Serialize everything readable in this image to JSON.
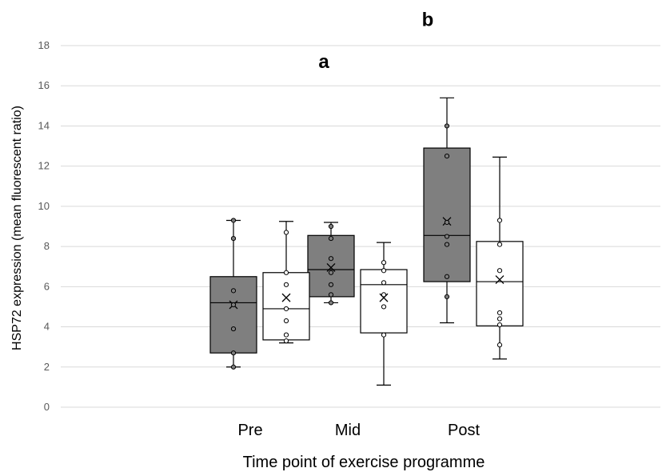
{
  "chart_data": {
    "type": "box",
    "ylabel": "HSP72 expression (mean fluorescent ratio)",
    "xlabel": "Time point of exercise programme",
    "ylim": [
      0,
      18
    ],
    "yticks": [
      0,
      2,
      4,
      6,
      8,
      10,
      12,
      14,
      16,
      18
    ],
    "grid": true,
    "categories": [
      "Pre",
      "Mid",
      "Post"
    ],
    "series": [
      {
        "fill": "#7f7f7f",
        "boxes": [
          {
            "whisker_low": 2.0,
            "q1": 2.7,
            "median": 5.2,
            "q3": 6.5,
            "whisker_high": 9.3,
            "mean": 5.1,
            "points": [
              2.0,
              2.7,
              3.9,
              5.1,
              5.8,
              8.4,
              9.3
            ]
          },
          {
            "whisker_low": 5.2,
            "q1": 5.5,
            "median": 6.85,
            "q3": 8.55,
            "whisker_high": 9.2,
            "mean": 6.95,
            "points": [
              5.2,
              5.6,
              6.1,
              6.7,
              7.4,
              8.4,
              9.0
            ]
          },
          {
            "whisker_low": 4.2,
            "q1": 6.25,
            "median": 8.55,
            "q3": 12.9,
            "whisker_high": 15.4,
            "mean": 9.25,
            "points": [
              5.5,
              6.5,
              8.1,
              8.5,
              9.2,
              12.5,
              14.0
            ]
          }
        ]
      },
      {
        "fill": "#ffffff",
        "boxes": [
          {
            "whisker_low": 3.2,
            "q1": 3.35,
            "median": 4.9,
            "q3": 6.7,
            "whisker_high": 9.25,
            "mean": 5.45,
            "points": [
              3.3,
              3.6,
              4.3,
              4.9,
              6.1,
              6.7,
              8.7
            ]
          },
          {
            "whisker_low": 1.1,
            "q1": 3.7,
            "median": 6.1,
            "q3": 6.85,
            "whisker_high": 8.2,
            "mean": 5.45,
            "points": [
              3.6,
              5.0,
              5.6,
              6.2,
              6.8,
              7.2
            ]
          },
          {
            "whisker_low": 2.4,
            "q1": 4.05,
            "median": 6.25,
            "q3": 8.25,
            "whisker_high": 12.45,
            "mean": 6.35,
            "points": [
              3.1,
              4.1,
              4.4,
              4.7,
              6.8,
              8.1,
              9.3
            ]
          }
        ]
      }
    ],
    "annotations": [
      {
        "text": "a",
        "category": "Mid",
        "value": 17.2
      },
      {
        "text": "b",
        "category": "Post",
        "value": 19.3
      }
    ]
  }
}
